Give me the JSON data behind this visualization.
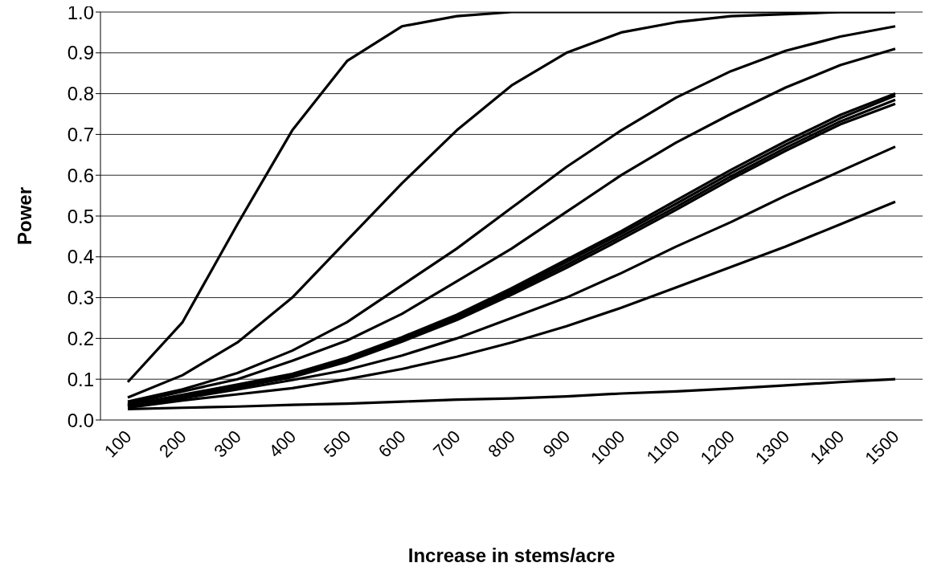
{
  "chart_data": {
    "type": "line",
    "xlabel": "Increase in stems/acre",
    "ylabel": "Power",
    "categories": [
      "100",
      "200",
      "300",
      "400",
      "500",
      "600",
      "700",
      "800",
      "900",
      "1000",
      "1100",
      "1200",
      "1300",
      "1400",
      "1500"
    ],
    "ylim": [
      0,
      1
    ],
    "yticks": [
      {
        "value": 0,
        "label": "0.0"
      },
      {
        "value": 0.1,
        "label": "0.1"
      },
      {
        "value": 0.2,
        "label": "0.2"
      },
      {
        "value": 0.3,
        "label": "0.3"
      },
      {
        "value": 0.4,
        "label": "0.4"
      },
      {
        "value": 0.5,
        "label": "0.5"
      },
      {
        "value": 0.6,
        "label": "0.6"
      },
      {
        "value": 0.7,
        "label": "0.7"
      },
      {
        "value": 0.8,
        "label": "0.8"
      },
      {
        "value": 0.9,
        "label": "0.9"
      },
      {
        "value": 1,
        "label": "1.0"
      }
    ],
    "grid": "y",
    "series": [
      {
        "color": "#000000",
        "values": [
          0.093,
          0.24,
          0.48,
          0.71,
          0.88,
          0.965,
          0.99,
          1.0,
          1.0,
          1.0,
          1.0,
          1.0,
          1.0,
          1.0,
          1.0
        ]
      },
      {
        "color": "#000000",
        "values": [
          0.055,
          0.11,
          0.19,
          0.3,
          0.44,
          0.58,
          0.71,
          0.82,
          0.9,
          0.95,
          0.975,
          0.99,
          0.995,
          1.0,
          1.0
        ]
      },
      {
        "color": "#000000",
        "values": [
          0.045,
          0.075,
          0.115,
          0.17,
          0.24,
          0.33,
          0.42,
          0.52,
          0.62,
          0.71,
          0.79,
          0.855,
          0.905,
          0.94,
          0.965
        ]
      },
      {
        "color": "#000000",
        "values": [
          0.04,
          0.07,
          0.1,
          0.145,
          0.195,
          0.26,
          0.34,
          0.42,
          0.51,
          0.6,
          0.68,
          0.75,
          0.815,
          0.87,
          0.91
        ]
      },
      {
        "color": "#000000",
        "values": [
          0.037,
          0.062,
          0.087,
          0.113,
          0.153,
          0.203,
          0.258,
          0.323,
          0.393,
          0.463,
          0.538,
          0.613,
          0.683,
          0.748,
          0.8
        ]
      },
      {
        "color": "#000000",
        "values": [
          0.036,
          0.06,
          0.085,
          0.11,
          0.15,
          0.2,
          0.254,
          0.318,
          0.387,
          0.457,
          0.53,
          0.605,
          0.675,
          0.74,
          0.795
        ]
      },
      {
        "color": "#000000",
        "values": [
          0.035,
          0.058,
          0.083,
          0.108,
          0.147,
          0.196,
          0.25,
          0.313,
          0.38,
          0.45,
          0.522,
          0.597,
          0.667,
          0.732,
          0.785
        ]
      },
      {
        "color": "#000000",
        "values": [
          0.034,
          0.056,
          0.08,
          0.105,
          0.143,
          0.192,
          0.245,
          0.307,
          0.373,
          0.443,
          0.515,
          0.59,
          0.66,
          0.725,
          0.775
        ]
      },
      {
        "color": "#000000",
        "values": [
          0.033,
          0.053,
          0.075,
          0.098,
          0.123,
          0.158,
          0.2,
          0.25,
          0.3,
          0.36,
          0.425,
          0.485,
          0.55,
          0.61,
          0.67
        ]
      },
      {
        "color": "#000000",
        "values": [
          0.03,
          0.048,
          0.063,
          0.078,
          0.1,
          0.125,
          0.155,
          0.19,
          0.23,
          0.275,
          0.325,
          0.375,
          0.425,
          0.48,
          0.535
        ]
      },
      {
        "color": "#000000",
        "values": [
          0.027,
          0.03,
          0.033,
          0.037,
          0.04,
          0.045,
          0.05,
          0.053,
          0.058,
          0.065,
          0.07,
          0.077,
          0.085,
          0.093,
          0.1
        ]
      }
    ]
  }
}
